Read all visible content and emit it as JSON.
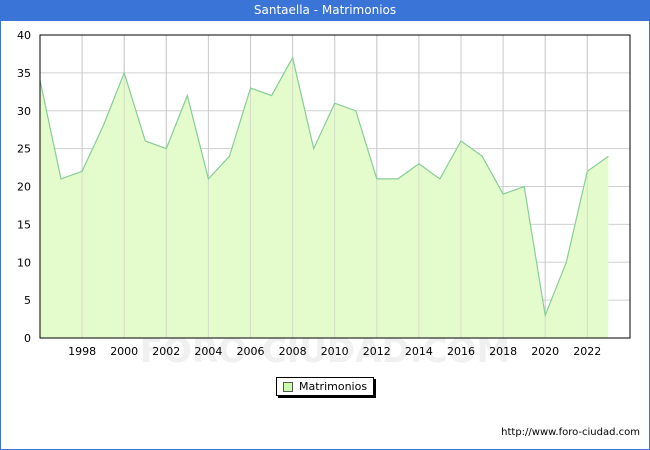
{
  "title": "Santaella - Matrimonios",
  "legend": {
    "label": "Matrimonios",
    "swatch_color": "#ccffaa"
  },
  "footer": {
    "url": "http://www.foro-ciudad.com"
  },
  "watermark": "FORO-CIUDAD.COM",
  "colors": {
    "header": "#3a74d6",
    "line": "#88cc99",
    "fill": "#e4fccc",
    "grid": "#d0d0d0"
  },
  "chart_data": {
    "type": "area",
    "title": "Santaella - Matrimonios",
    "xlabel": "",
    "ylabel": "",
    "x": [
      1996,
      1997,
      1998,
      1999,
      2000,
      2001,
      2002,
      2003,
      2004,
      2005,
      2006,
      2007,
      2008,
      2009,
      2010,
      2011,
      2012,
      2013,
      2014,
      2015,
      2016,
      2017,
      2018,
      2019,
      2020,
      2021,
      2022,
      2023
    ],
    "series": [
      {
        "name": "Matrimonios",
        "values": [
          34,
          21,
          22,
          28,
          35,
          26,
          25,
          32,
          21,
          24,
          33,
          32,
          37,
          25,
          31,
          30,
          21,
          21,
          23,
          21,
          26,
          24,
          19,
          20,
          3,
          10,
          22,
          24
        ]
      }
    ],
    "x_tick_labels": [
      "1998",
      "2000",
      "2002",
      "2004",
      "2006",
      "2008",
      "2010",
      "2012",
      "2014",
      "2016",
      "2018",
      "2020",
      "2022"
    ],
    "y_tick_labels": [
      "0",
      "5",
      "10",
      "15",
      "20",
      "25",
      "30",
      "35",
      "40"
    ],
    "ylim": [
      0,
      40
    ],
    "grid": true,
    "legend_position": "bottom"
  }
}
